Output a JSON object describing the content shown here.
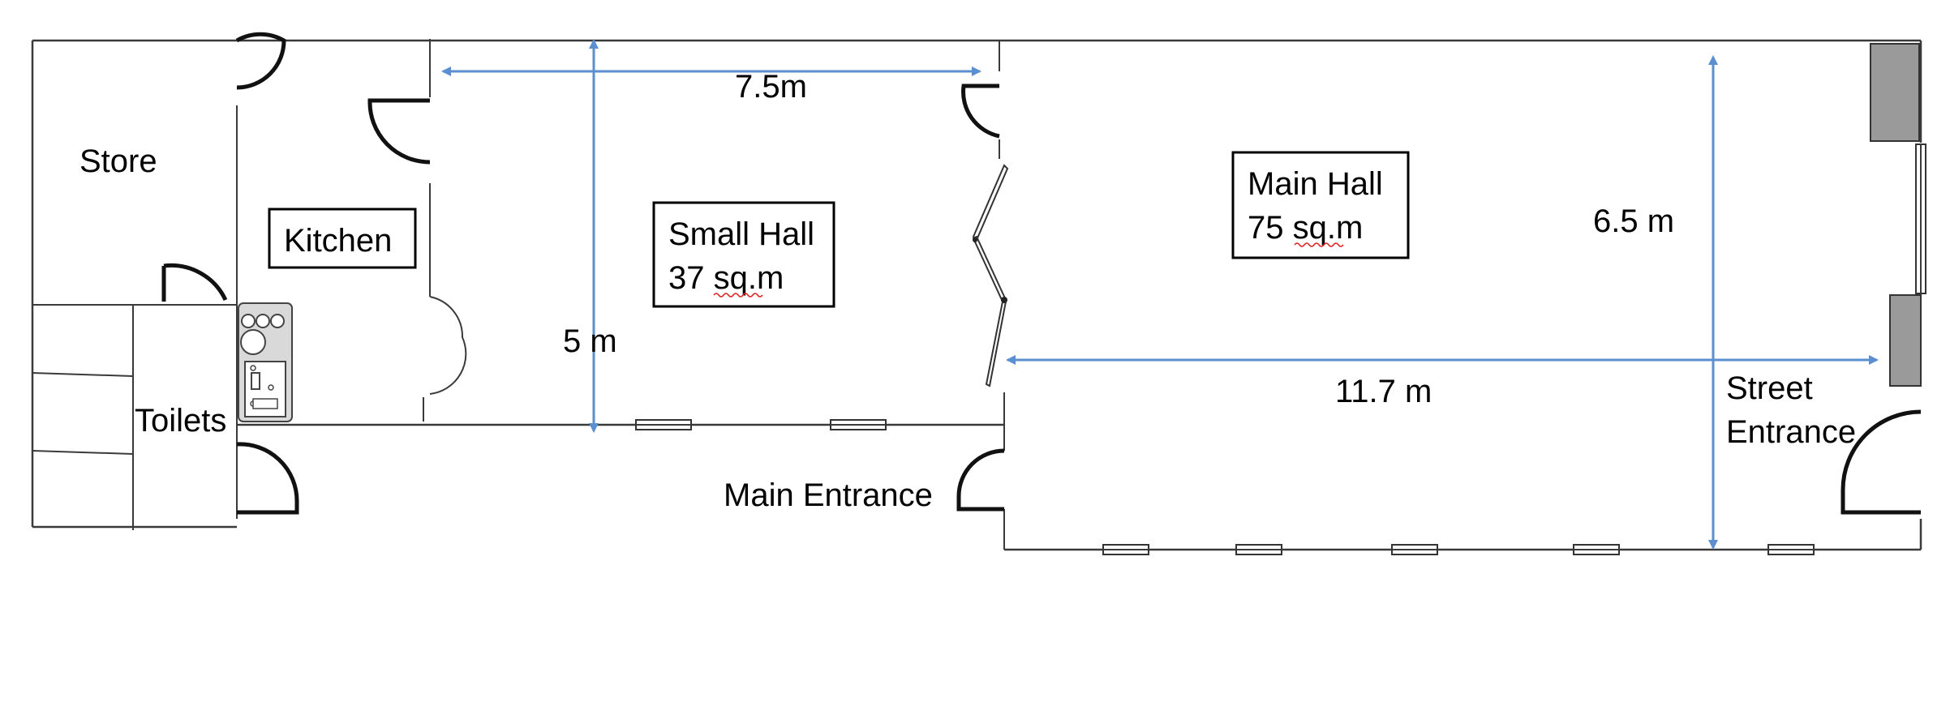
{
  "labels": {
    "store": "Store",
    "kitchen": "Kitchen",
    "toilets": "Toilets",
    "small_hall_name": "Small Hall",
    "small_hall_area": "37 sq.m",
    "main_hall_name": "Main Hall",
    "main_hall_area": "75 sq.m",
    "main_entrance": "Main Entrance",
    "street_entrance_line1": "Street",
    "street_entrance_line2": "Entrance"
  },
  "dimensions": {
    "small_hall_width": "7.5m",
    "small_hall_depth": "5 m",
    "main_hall_width": "11.7 m",
    "main_hall_depth": "6.5 m"
  },
  "colors": {
    "dimension_line": "#5b8fcf",
    "wall": "#3a3a3a",
    "street_panel": "#9a9a9a"
  }
}
